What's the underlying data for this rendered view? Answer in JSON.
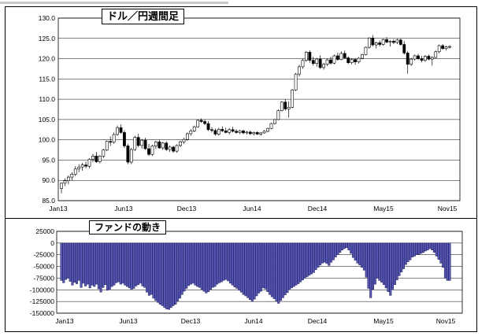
{
  "chart_data": [
    {
      "type": "candlestick",
      "title": "ドル／円週間足",
      "y_ticks": [
        "85.0",
        "90.0",
        "95.0",
        "100.0",
        "105.0",
        "110.0",
        "115.0",
        "120.0",
        "125.0",
        "130.0"
      ],
      "ylim": [
        85,
        130
      ],
      "x_ticks": [
        "Jan13",
        "Jun13",
        "Dec13",
        "Jun14",
        "Dec14",
        "May15",
        "Nov15"
      ],
      "grid": true,
      "series": [
        {
          "values": [
            [
              88.0,
              89.5,
              86.8,
              89.3
            ],
            [
              89.3,
              90.5,
              88.6,
              89.9
            ],
            [
              89.9,
              91.2,
              89.0,
              90.8
            ],
            [
              90.8,
              92.0,
              90.0,
              91.5
            ],
            [
              91.5,
              93.5,
              91.0,
              92.8
            ],
            [
              92.8,
              94.0,
              92.0,
              93.3
            ],
            [
              93.3,
              94.3,
              92.4,
              93.8
            ],
            [
              93.8,
              94.6,
              93.0,
              93.5
            ],
            [
              93.5,
              95.5,
              93.0,
              95.2
            ],
            [
              95.2,
              96.5,
              94.5,
              96.0
            ],
            [
              96.0,
              97.0,
              94.3,
              94.6
            ],
            [
              94.6,
              96.2,
              94.2,
              96.0
            ],
            [
              96.0,
              97.8,
              95.5,
              97.5
            ],
            [
              97.5,
              99.8,
              97.2,
              99.6
            ],
            [
              99.6,
              100.8,
              98.5,
              99.4
            ],
            [
              99.4,
              101.8,
              99.0,
              101.3
            ],
            [
              101.3,
              103.5,
              101.0,
              103.0
            ],
            [
              103.0,
              103.8,
              101.5,
              101.8
            ],
            [
              101.8,
              102.3,
              98.0,
              98.5
            ],
            [
              98.5,
              99.0,
              94.0,
              94.5
            ],
            [
              94.5,
              98.0,
              94.0,
              97.6
            ],
            [
              97.6,
              101.0,
              97.2,
              100.6
            ],
            [
              100.6,
              101.5,
              98.2,
              98.6
            ],
            [
              98.6,
              100.2,
              97.8,
              99.9
            ],
            [
              99.9,
              100.5,
              97.5,
              97.8
            ],
            [
              97.8,
              99.0,
              96.0,
              96.4
            ],
            [
              96.4,
              98.8,
              96.0,
              98.5
            ],
            [
              98.5,
              99.8,
              97.7,
              99.5
            ],
            [
              99.5,
              100.0,
              97.8,
              98.0
            ],
            [
              98.0,
              99.5,
              97.5,
              99.2
            ],
            [
              99.2,
              99.6,
              97.3,
              97.6
            ],
            [
              97.6,
              98.6,
              97.0,
              98.2
            ],
            [
              98.2,
              98.5,
              96.8,
              97.2
            ],
            [
              97.2,
              98.9,
              96.8,
              98.6
            ],
            [
              98.6,
              99.8,
              98.2,
              99.5
            ],
            [
              99.5,
              100.5,
              99.0,
              100.1
            ],
            [
              100.1,
              101.8,
              99.8,
              101.5
            ],
            [
              101.5,
              102.6,
              101.0,
              102.2
            ],
            [
              102.2,
              103.5,
              101.9,
              103.2
            ],
            [
              103.2,
              105.0,
              103.0,
              104.8
            ],
            [
              104.8,
              105.3,
              104.2,
              104.5
            ],
            [
              104.5,
              105.0,
              103.6,
              104.0
            ],
            [
              104.0,
              104.6,
              102.2,
              102.5
            ],
            [
              102.5,
              103.1,
              101.8,
              102.3
            ],
            [
              102.3,
              102.8,
              101.0,
              101.4
            ],
            [
              101.4,
              103.0,
              101.0,
              102.6
            ],
            [
              102.6,
              103.3,
              101.9,
              102.2
            ],
            [
              102.2,
              103.0,
              101.6,
              101.8
            ],
            [
              101.8,
              102.9,
              101.3,
              102.5
            ],
            [
              102.5,
              103.2,
              101.8,
              102.1
            ],
            [
              102.1,
              102.6,
              101.5,
              101.8
            ],
            [
              101.8,
              102.5,
              101.4,
              102.2
            ],
            [
              102.2,
              102.5,
              101.4,
              101.7
            ],
            [
              101.7,
              102.2,
              101.3,
              101.9
            ],
            [
              101.9,
              102.3,
              101.2,
              101.5
            ],
            [
              101.5,
              102.0,
              101.1,
              101.8
            ],
            [
              101.8,
              102.1,
              101.2,
              101.4
            ],
            [
              101.4,
              101.9,
              101.0,
              101.7
            ],
            [
              101.7,
              102.4,
              101.5,
              102.1
            ],
            [
              102.1,
              103.0,
              101.8,
              102.8
            ],
            [
              102.8,
              104.2,
              102.6,
              104.0
            ],
            [
              104.0,
              105.2,
              103.8,
              105.0
            ],
            [
              105.0,
              107.5,
              104.8,
              107.2
            ],
            [
              107.2,
              109.5,
              107.0,
              109.3
            ],
            [
              109.3,
              110.0,
              107.2,
              107.6
            ],
            [
              107.6,
              109.5,
              105.5,
              108.0
            ],
            [
              108.0,
              112.5,
              107.8,
              112.3
            ],
            [
              112.3,
              116.5,
              112.0,
              116.2
            ],
            [
              116.2,
              118.5,
              115.6,
              118.0
            ],
            [
              118.0,
              120.0,
              117.5,
              119.6
            ],
            [
              119.6,
              121.9,
              119.2,
              121.6
            ],
            [
              121.6,
              122.0,
              119.0,
              119.6
            ],
            [
              119.6,
              120.5,
              118.3,
              118.8
            ],
            [
              118.8,
              120.2,
              118.0,
              119.9
            ],
            [
              119.9,
              120.8,
              117.5,
              117.8
            ],
            [
              117.8,
              119.0,
              117.3,
              118.6
            ],
            [
              118.6,
              120.0,
              118.2,
              119.7
            ],
            [
              119.7,
              120.5,
              118.5,
              118.9
            ],
            [
              118.9,
              121.0,
              118.6,
              120.7
            ],
            [
              120.7,
              121.5,
              119.5,
              119.8
            ],
            [
              119.8,
              121.8,
              119.6,
              121.3
            ],
            [
              121.3,
              122.0,
              120.0,
              120.2
            ],
            [
              120.2,
              120.6,
              118.7,
              119.0
            ],
            [
              119.0,
              120.1,
              118.6,
              119.8
            ],
            [
              119.8,
              120.0,
              118.5,
              119.2
            ],
            [
              119.2,
              120.4,
              118.8,
              120.1
            ],
            [
              120.1,
              121.2,
              119.8,
              121.0
            ],
            [
              121.0,
              123.0,
              120.8,
              122.8
            ],
            [
              122.8,
              125.3,
              122.5,
              125.1
            ],
            [
              125.1,
              125.8,
              123.0,
              123.4
            ],
            [
              123.4,
              124.2,
              122.5,
              123.9
            ],
            [
              123.9,
              124.5,
              123.0,
              123.5
            ],
            [
              123.5,
              125.0,
              123.2,
              124.7
            ],
            [
              124.7,
              125.3,
              123.8,
              124.1
            ],
            [
              124.1,
              124.6,
              123.0,
              124.3
            ],
            [
              124.3,
              124.8,
              123.6,
              124.0
            ],
            [
              124.0,
              124.9,
              123.6,
              124.6
            ],
            [
              124.6,
              125.0,
              123.2,
              123.5
            ],
            [
              123.5,
              124.3,
              121.0,
              121.4
            ],
            [
              121.4,
              121.9,
              116.3,
              118.6
            ],
            [
              118.6,
              120.2,
              118.2,
              119.9
            ],
            [
              119.9,
              121.0,
              119.5,
              120.7
            ],
            [
              120.7,
              121.2,
              119.7,
              120.0
            ],
            [
              120.0,
              120.7,
              119.1,
              119.6
            ],
            [
              119.6,
              120.9,
              119.2,
              120.6
            ],
            [
              120.6,
              121.0,
              119.6,
              119.9
            ],
            [
              119.9,
              120.6,
              118.3,
              120.3
            ],
            [
              120.3,
              122.0,
              120.1,
              121.7
            ],
            [
              121.7,
              123.5,
              121.3,
              123.2
            ],
            [
              123.2,
              123.6,
              122.2,
              122.5
            ],
            [
              122.5,
              123.2,
              122.0,
              122.9
            ],
            [
              122.9,
              123.3,
              122.5,
              123.0
            ]
          ]
        }
      ]
    },
    {
      "type": "bar",
      "title": "ファンドの動き",
      "y_ticks": [
        "25000",
        "0",
        "-25000",
        "-50000",
        "-75000",
        "-100000",
        "-125000",
        "-150000"
      ],
      "ylim": [
        -150000,
        25000
      ],
      "x_ticks": [
        "Jan13",
        "Jun13",
        "Dec13",
        "Jun14",
        "Dec14",
        "May15",
        "Nov15"
      ],
      "grid": true,
      "values": [
        -80000,
        -85000,
        -78000,
        -75000,
        -82000,
        -90000,
        -84000,
        -87000,
        -80000,
        -95000,
        -86000,
        -92000,
        -88000,
        -96000,
        -90000,
        -93000,
        -88000,
        -98000,
        -105000,
        -95000,
        -89000,
        -101000,
        -100000,
        -93000,
        -90000,
        -85000,
        -83000,
        -88000,
        -86000,
        -90000,
        -93000,
        -96000,
        -100000,
        -97000,
        -92000,
        -89000,
        -86000,
        -92000,
        -95000,
        -105000,
        -112000,
        -110000,
        -118000,
        -123000,
        -127000,
        -131000,
        -134000,
        -138000,
        -141000,
        -142000,
        -138000,
        -134000,
        -131000,
        -124000,
        -118000,
        -110000,
        -103000,
        -97000,
        -91000,
        -88000,
        -86000,
        -90000,
        -93000,
        -95000,
        -99000,
        -103000,
        -107000,
        -104000,
        -99000,
        -95000,
        -93000,
        -88000,
        -85000,
        -83000,
        -80000,
        -78000,
        -81000,
        -86000,
        -90000,
        -94000,
        -97000,
        -101000,
        -105000,
        -110000,
        -113000,
        -117000,
        -121000,
        -125000,
        -120000,
        -113000,
        -107000,
        -103000,
        -96000,
        -98000,
        -104000,
        -110000,
        -115000,
        -119000,
        -124000,
        -129000,
        -123000,
        -117000,
        -111000,
        -106000,
        -100000,
        -96000,
        -93000,
        -90000,
        -87000,
        -83000,
        -79000,
        -75000,
        -72000,
        -69000,
        -66000,
        -63000,
        -57000,
        -52000,
        -47000,
        -43000,
        -41000,
        -44000,
        -48000,
        -41000,
        -36000,
        -30000,
        -25000,
        -20000,
        -15000,
        -12000,
        -10000,
        -15000,
        -22000,
        -31000,
        -37000,
        -43000,
        -47000,
        -52000,
        -58000,
        -73000,
        -97000,
        -117000,
        -99000,
        -88000,
        -75000,
        -80000,
        -84000,
        -89000,
        -96000,
        -104000,
        -112000,
        -100000,
        -89000,
        -79000,
        -70000,
        -62000,
        -55000,
        -46000,
        -40000,
        -36000,
        -30000,
        -28000,
        -25000,
        -24000,
        -22000,
        -20000,
        -17000,
        -15000,
        -12000,
        -15000,
        -20000,
        -28000,
        -35000,
        -43000,
        -52000,
        -75000,
        -80000,
        -80000
      ]
    }
  ]
}
